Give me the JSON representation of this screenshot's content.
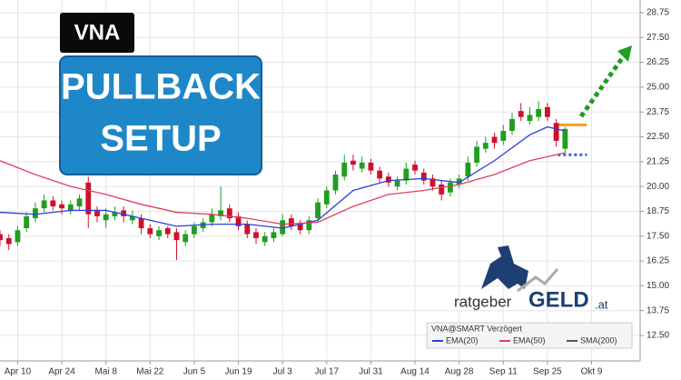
{
  "chart_data": {
    "type": "candlestick",
    "overlay": {
      "symbol": "VNA",
      "headline": [
        "PULLBACK",
        "SETUP"
      ],
      "brand": [
        "ratgeber",
        "GELD",
        ".at"
      ],
      "legend_title": "VNA@SMART Verzögert"
    },
    "x": [
      0,
      2,
      4,
      6,
      8,
      10,
      12,
      14,
      16,
      18,
      20,
      22,
      24,
      26,
      28,
      30,
      32,
      34,
      36,
      38,
      40,
      42,
      44,
      46,
      48,
      50,
      52,
      54,
      56,
      58,
      60,
      62,
      64,
      66,
      68,
      70,
      72,
      74,
      76,
      78,
      80,
      82,
      84,
      86,
      88,
      90,
      92,
      94,
      96,
      98,
      100,
      102,
      104,
      106,
      108,
      110,
      112,
      114,
      116,
      118,
      120,
      122,
      124,
      126,
      128
    ],
    "ohlc": [
      [
        17.6,
        17.8,
        17.0,
        17.3
      ],
      [
        17.4,
        17.6,
        16.8,
        17.1
      ],
      [
        17.2,
        18.0,
        17.0,
        17.8
      ],
      [
        17.9,
        18.7,
        17.7,
        18.5
      ],
      [
        18.4,
        19.2,
        18.2,
        18.9
      ],
      [
        18.9,
        19.6,
        18.7,
        19.3
      ],
      [
        19.3,
        19.5,
        18.8,
        19.0
      ],
      [
        19.1,
        19.3,
        18.6,
        18.9
      ],
      [
        18.8,
        19.3,
        18.6,
        19.1
      ],
      [
        19.0,
        19.6,
        18.8,
        19.4
      ],
      [
        20.2,
        20.5,
        17.9,
        18.6
      ],
      [
        18.8,
        19.0,
        18.2,
        18.5
      ],
      [
        18.3,
        18.9,
        17.9,
        18.6
      ],
      [
        18.5,
        19.0,
        18.3,
        18.7
      ],
      [
        18.8,
        19.0,
        18.2,
        18.5
      ],
      [
        18.3,
        18.8,
        18.1,
        18.5
      ],
      [
        18.4,
        18.6,
        17.6,
        17.9
      ],
      [
        17.9,
        18.1,
        17.4,
        17.6
      ],
      [
        17.5,
        18.0,
        17.3,
        17.8
      ],
      [
        17.9,
        18.0,
        17.4,
        17.6
      ],
      [
        17.7,
        17.9,
        16.3,
        17.3
      ],
      [
        17.2,
        17.8,
        17.0,
        17.6
      ],
      [
        17.6,
        18.2,
        17.4,
        18.0
      ],
      [
        17.9,
        18.4,
        17.7,
        18.2
      ],
      [
        18.2,
        18.9,
        18.0,
        18.6
      ],
      [
        18.5,
        20.0,
        18.3,
        18.8
      ],
      [
        18.9,
        19.1,
        18.2,
        18.4
      ],
      [
        18.5,
        18.7,
        17.8,
        18.0
      ],
      [
        18.1,
        18.3,
        17.4,
        17.6
      ],
      [
        17.7,
        17.9,
        17.1,
        17.4
      ],
      [
        17.2,
        17.7,
        17.0,
        17.5
      ],
      [
        17.4,
        17.9,
        17.2,
        17.7
      ],
      [
        17.6,
        18.6,
        17.5,
        18.3
      ],
      [
        18.4,
        18.6,
        17.8,
        18.0
      ],
      [
        18.1,
        18.3,
        17.6,
        17.8
      ],
      [
        17.8,
        18.5,
        17.6,
        18.3
      ],
      [
        18.4,
        19.4,
        18.2,
        19.2
      ],
      [
        19.1,
        20.0,
        18.9,
        19.8
      ],
      [
        19.8,
        20.8,
        19.6,
        20.6
      ],
      [
        20.5,
        21.6,
        20.3,
        21.2
      ],
      [
        21.3,
        21.6,
        20.8,
        21.1
      ],
      [
        20.9,
        21.5,
        20.7,
        21.2
      ],
      [
        21.2,
        21.4,
        20.6,
        20.8
      ],
      [
        20.8,
        21.0,
        20.2,
        20.4
      ],
      [
        20.5,
        20.7,
        20.0,
        20.2
      ],
      [
        20.0,
        20.5,
        19.8,
        20.3
      ],
      [
        20.3,
        21.2,
        20.1,
        20.9
      ],
      [
        21.1,
        21.3,
        20.6,
        20.8
      ],
      [
        20.7,
        20.9,
        20.1,
        20.3
      ],
      [
        20.4,
        20.6,
        19.8,
        20.0
      ],
      [
        20.1,
        20.3,
        19.3,
        19.6
      ],
      [
        19.7,
        20.4,
        19.5,
        20.2
      ],
      [
        20.1,
        20.6,
        19.9,
        20.4
      ],
      [
        20.5,
        21.5,
        20.3,
        21.2
      ],
      [
        21.2,
        22.3,
        21.0,
        22.0
      ],
      [
        21.9,
        22.5,
        21.7,
        22.2
      ],
      [
        22.5,
        22.7,
        21.9,
        22.2
      ],
      [
        22.3,
        23.1,
        22.1,
        22.8
      ],
      [
        22.8,
        23.7,
        22.6,
        23.4
      ],
      [
        23.8,
        24.2,
        23.3,
        23.5
      ],
      [
        23.3,
        24.0,
        23.1,
        23.6
      ],
      [
        23.5,
        24.3,
        23.3,
        23.9
      ],
      [
        24.0,
        24.2,
        23.3,
        23.5
      ],
      [
        23.2,
        23.4,
        22.0,
        22.3
      ],
      [
        21.9,
        23.0,
        21.7,
        22.9
      ]
    ],
    "up_color": "#1f9e1f",
    "down_color": "#d0102a",
    "series": [
      {
        "name": "EMA(20)",
        "color": "#2a3fd8",
        "x": [
          0,
          8,
          16,
          24,
          32,
          40,
          48,
          56,
          64,
          72,
          80,
          88,
          96,
          104,
          112,
          120,
          124,
          128
        ],
        "values": [
          18.7,
          18.6,
          18.8,
          18.8,
          18.4,
          18.0,
          18.1,
          18.1,
          17.9,
          18.3,
          19.8,
          20.3,
          20.4,
          20.2,
          21.3,
          22.6,
          23.0,
          22.8
        ]
      },
      {
        "name": "EMA(50)",
        "color": "#e0405a",
        "x": [
          0,
          8,
          16,
          24,
          32,
          40,
          48,
          56,
          64,
          72,
          80,
          88,
          96,
          104,
          112,
          120,
          128
        ],
        "values": [
          21.3,
          20.6,
          20.0,
          19.6,
          19.1,
          18.7,
          18.6,
          18.4,
          18.1,
          18.2,
          19.0,
          19.6,
          19.8,
          20.1,
          20.6,
          21.3,
          21.7
        ]
      },
      {
        "name": "SMA(200)",
        "color": "#555555",
        "x": [],
        "values": []
      }
    ],
    "levels": [
      {
        "value": 23.1,
        "color": "#f0a020",
        "style": "solid"
      },
      {
        "value": 21.6,
        "color": "#3060e0",
        "style": "dotted"
      }
    ],
    "xlim": [
      0,
      145
    ],
    "xticks": [
      {
        "value": 4,
        "label": "Apr 10"
      },
      {
        "value": 14,
        "label": "Apr 24"
      },
      {
        "value": 24,
        "label": "Mai 8"
      },
      {
        "value": 34,
        "label": "Mai 22"
      },
      {
        "value": 44,
        "label": "Jun 5"
      },
      {
        "value": 54,
        "label": "Jun 19"
      },
      {
        "value": 64,
        "label": "Jul 3"
      },
      {
        "value": 74,
        "label": "Jul 17"
      },
      {
        "value": 84,
        "label": "Jul 31"
      },
      {
        "value": 94,
        "label": "Aug 14"
      },
      {
        "value": 104,
        "label": "Aug 28"
      },
      {
        "value": 114,
        "label": "Sep 11"
      },
      {
        "value": 124,
        "label": "Sep 25"
      },
      {
        "value": 134,
        "label": "Okt 9"
      }
    ],
    "ylim": [
      11.31,
      29.39
    ],
    "yticks": [
      {
        "value": 12.5,
        "label": "12.50"
      },
      13.75,
      {
        "value": 15,
        "label": "15.00"
      },
      16.25,
      {
        "value": 17.5,
        "label": "17.50"
      },
      18.75,
      {
        "value": 20,
        "label": "20.00"
      },
      21.25,
      {
        "value": 22.5,
        "label": "22.50"
      },
      23.75,
      {
        "value": 25,
        "label": "25.00"
      },
      26.25,
      {
        "value": 27.5,
        "label": "27.50"
      },
      28.75
    ],
    "grid": true
  }
}
